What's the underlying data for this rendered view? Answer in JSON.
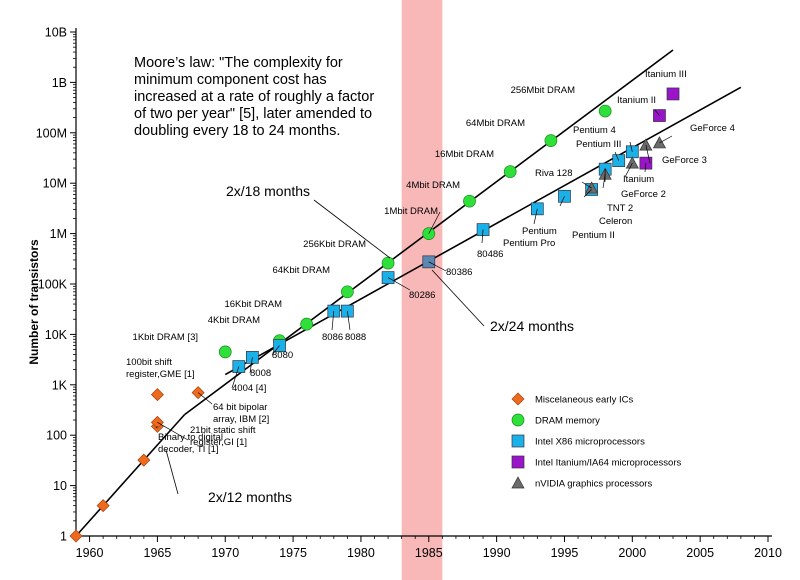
{
  "chart_data": {
    "type": "scatter",
    "title": "",
    "xlabel": "",
    "ylabel": "Number of transistors",
    "xlim": [
      1959,
      2010
    ],
    "ylim": [
      1,
      10000000000
    ],
    "y_scale": "log",
    "x_ticks": [
      "1960",
      "1965",
      "1970",
      "1975",
      "1980",
      "1985",
      "1990",
      "1995",
      "2000",
      "2005",
      "2010"
    ],
    "y_ticks": [
      "1",
      "10",
      "100",
      "1K",
      "10K",
      "100K",
      "1M",
      "10M",
      "100M",
      "1B",
      "10B"
    ],
    "shaded_band": {
      "x_from": 1983,
      "x_to": 1986,
      "color": "#f9b8b8"
    },
    "annotation": "Moore’s law: \"The complexity for minimum component cost has increased at a rate of roughly a factor of two per year\" [5], later amended to doubling every 18 to 24 months.",
    "annotation_lines": [
      "Moore’s law: \"The complexity for",
      "minimum component cost has",
      "increased at a rate of roughly a factor",
      "of two per year\" [5], later amended to",
      "doubling every 18 to 24 months."
    ],
    "trend_lines": [
      {
        "label": "2x/12 months",
        "from": [
          1959,
          1
        ],
        "to": [
          1967,
          256
        ]
      },
      {
        "label": "2x/18 months",
        "from": [
          1967,
          256
        ],
        "to": [
          2003,
          4400000000
        ]
      },
      {
        "label": "2x/24 months",
        "from": [
          1970,
          1600
        ],
        "to": [
          2008,
          800000000
        ]
      }
    ],
    "rate_labels": [
      "2x/12 months",
      "2x/18 months",
      "2x/24 months"
    ],
    "series": [
      {
        "name": "Miscelaneous early ICs",
        "marker": "diamond",
        "color": "#f06a1c",
        "points": [
          {
            "x": 1959,
            "y": 1,
            "label": ""
          },
          {
            "x": 1961,
            "y": 4,
            "label": ""
          },
          {
            "x": 1964,
            "y": 32,
            "label": ""
          },
          {
            "x": 1965,
            "y": 150,
            "label": "Binary to digital decoder, TI [1]"
          },
          {
            "x": 1965,
            "y": 180,
            "label": "21bit static shift register,GI [1]"
          },
          {
            "x": 1965,
            "y": 640,
            "label": "100bit shift register,GME [1]"
          },
          {
            "x": 1968,
            "y": 700,
            "label": "64 bit bipolar array, IBM [2]"
          }
        ]
      },
      {
        "name": "DRAM memory",
        "marker": "circle",
        "color": "#2fe03a",
        "points": [
          {
            "x": 1970,
            "y": 4500,
            "label": "1Kbit DRAM [3]"
          },
          {
            "x": 1974,
            "y": 7500,
            "label": "4Kbit DRAM"
          },
          {
            "x": 1976,
            "y": 16000,
            "label": "16Kbit DRAM"
          },
          {
            "x": 1979,
            "y": 70000,
            "label": "64Kbit DRAM"
          },
          {
            "x": 1982,
            "y": 260000,
            "label": "256Kbit DRAM"
          },
          {
            "x": 1985,
            "y": 1000000,
            "label": "1Mbit DRAM"
          },
          {
            "x": 1988,
            "y": 4400000,
            "label": "4Mbit DRAM"
          },
          {
            "x": 1991,
            "y": 17000000,
            "label": "16Mbit DRAM"
          },
          {
            "x": 1994,
            "y": 70000000,
            "label": "64Mbit DRAM"
          },
          {
            "x": 1998,
            "y": 270000000,
            "label": "256Mbit DRAM"
          }
        ]
      },
      {
        "name": "Intel X86 microprocessors",
        "marker": "square",
        "color": "#1ab0e8",
        "points": [
          {
            "x": 1971,
            "y": 2300,
            "label": "4004 [4]"
          },
          {
            "x": 1972,
            "y": 3500,
            "label": "8008"
          },
          {
            "x": 1974,
            "y": 6000,
            "label": "8080"
          },
          {
            "x": 1978,
            "y": 29000,
            "label": "8086"
          },
          {
            "x": 1979,
            "y": 29000,
            "label": "8088"
          },
          {
            "x": 1982,
            "y": 134000,
            "label": "80286"
          },
          {
            "x": 1985,
            "y": 275000,
            "label": "80386"
          },
          {
            "x": 1989,
            "y": 1200000,
            "label": "80486"
          },
          {
            "x": 1993,
            "y": 3100000,
            "label": "Pentium"
          },
          {
            "x": 1995,
            "y": 5500000,
            "label": "Pentium Pro"
          },
          {
            "x": 1997,
            "y": 7500000,
            "label": "Pentium II"
          },
          {
            "x": 1998,
            "y": 19000000,
            "label": "Celeron"
          },
          {
            "x": 1999,
            "y": 28000000,
            "label": "Pentium III"
          },
          {
            "x": 2000,
            "y": 42000000,
            "label": "Pentium 4"
          }
        ]
      },
      {
        "name": "Intel Itanium/IA64 microprocessors",
        "marker": "square",
        "color": "#9a14c8",
        "points": [
          {
            "x": 2001,
            "y": 25000000,
            "label": "Itanium"
          },
          {
            "x": 2002,
            "y": 220000000,
            "label": "Itanium II"
          },
          {
            "x": 2003,
            "y": 590000000,
            "label": "Itanium III"
          }
        ]
      },
      {
        "name": "nVIDIA graphics processors",
        "marker": "triangle",
        "color": "#6b6b6b",
        "points": [
          {
            "x": 1997,
            "y": 8000000,
            "label": "Riva 128"
          },
          {
            "x": 1998,
            "y": 15000000,
            "label": "TNT 2"
          },
          {
            "x": 2000,
            "y": 25000000,
            "label": "GeForce 2"
          },
          {
            "x": 2001,
            "y": 57000000,
            "label": "GeForce 3"
          },
          {
            "x": 2002,
            "y": 63000000,
            "label": "GeForce 4"
          }
        ]
      }
    ],
    "legend": [
      {
        "label": "Miscelaneous early ICs",
        "marker": "diamond",
        "color": "#f06a1c"
      },
      {
        "label": "DRAM memory",
        "marker": "circle",
        "color": "#2fe03a"
      },
      {
        "label": "Intel X86 microprocessors",
        "marker": "square",
        "color": "#1ab0e8"
      },
      {
        "label": "Intel Itanium/IA64 microprocessors",
        "marker": "square",
        "color": "#9a14c8"
      },
      {
        "label": "nVIDIA graphics processors",
        "marker": "triangle",
        "color": "#6b6b6b"
      }
    ],
    "legend_position": "bottom-right"
  }
}
